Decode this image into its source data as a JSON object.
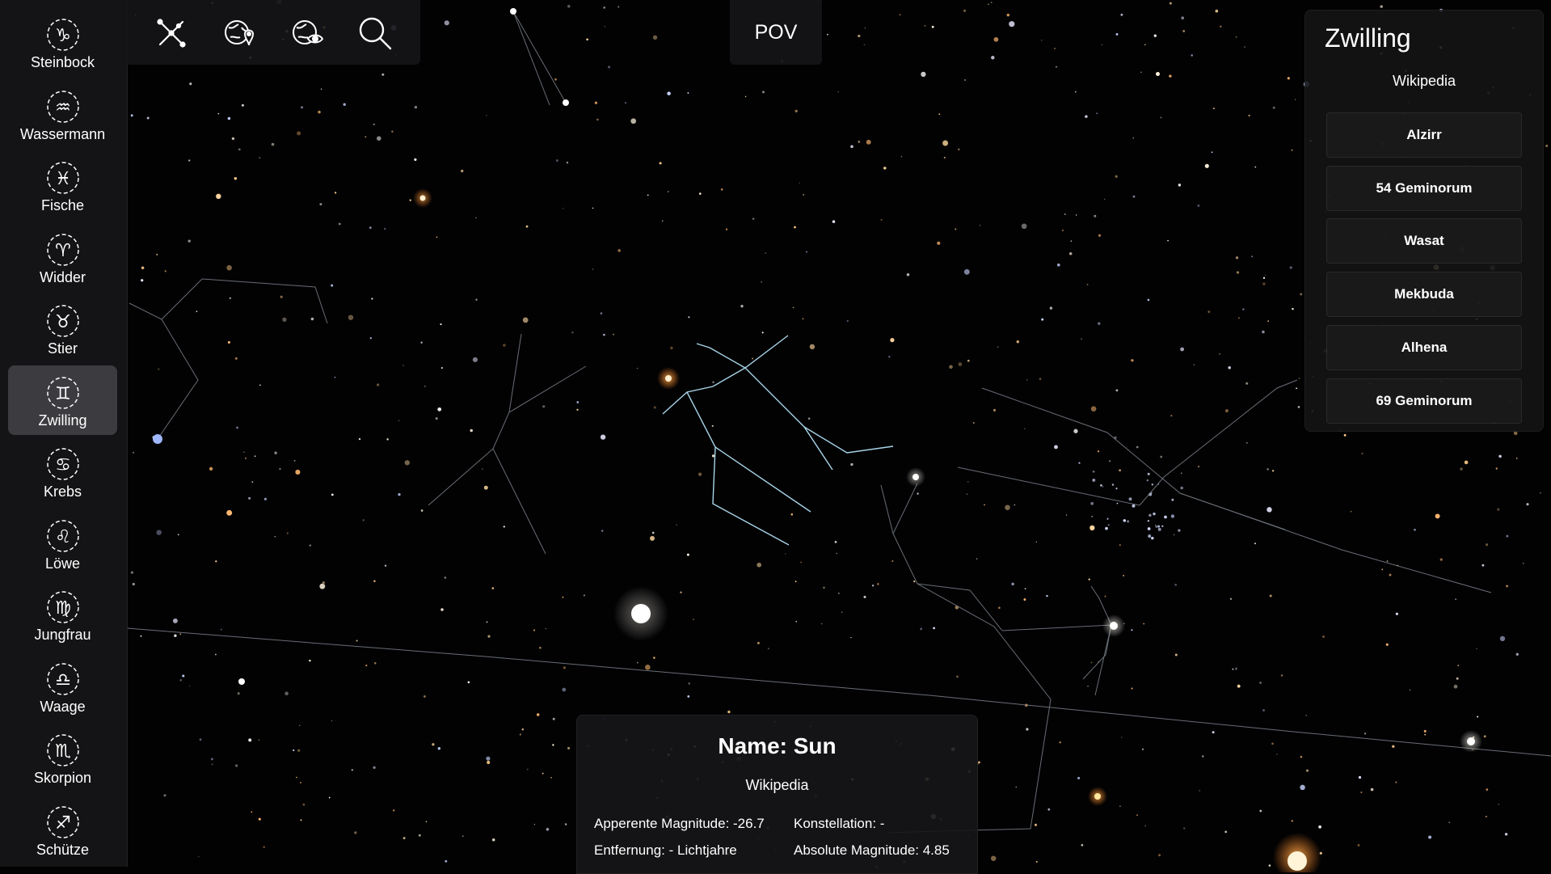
{
  "sidebar": {
    "items": [
      {
        "label": "Steinbock",
        "icon": "capricorn-icon",
        "active": false
      },
      {
        "label": "Wassermann",
        "icon": "aquarius-icon",
        "active": false
      },
      {
        "label": "Fische",
        "icon": "pisces-icon",
        "active": false
      },
      {
        "label": "Widder",
        "icon": "aries-icon",
        "active": false
      },
      {
        "label": "Stier",
        "icon": "taurus-icon",
        "active": false
      },
      {
        "label": "Zwilling",
        "icon": "gemini-icon",
        "active": true
      },
      {
        "label": "Krebs",
        "icon": "cancer-icon",
        "active": false
      },
      {
        "label": "Löwe",
        "icon": "leo-icon",
        "active": false
      },
      {
        "label": "Jungfrau",
        "icon": "virgo-icon",
        "active": false
      },
      {
        "label": "Waage",
        "icon": "libra-icon",
        "active": false
      },
      {
        "label": "Skorpion",
        "icon": "scorpio-icon",
        "active": false
      },
      {
        "label": "Schütze",
        "icon": "sagittarius-icon",
        "active": false
      }
    ]
  },
  "toolbar": {
    "tools": [
      "hide-lines-icon",
      "globe-pin-icon",
      "globe-view-icon",
      "search-icon"
    ]
  },
  "pov": {
    "label": "POV"
  },
  "constellation": {
    "title": "Zwilling",
    "wiki_label": "Wikipedia",
    "stars": [
      "Alzirr",
      "54 Geminorum",
      "Wasat",
      "Mekbuda",
      "Alhena",
      "69 Geminorum"
    ]
  },
  "info": {
    "name": "Name: Sun",
    "wiki_label": "Wikipedia",
    "magnitude": "Apperente Magnitude: -26.7",
    "constellation": "Konstellation: -",
    "distance": "Entfernung: - Lichtjahre",
    "absolute_magnitude": "Absolute Magnitude: 4.85"
  },
  "colors": {
    "highlight_lines": "#a8d4e8",
    "constellation_lines": "#7a8088",
    "star_warm": "#ffb060",
    "star_cool": "#a0b8ff"
  }
}
